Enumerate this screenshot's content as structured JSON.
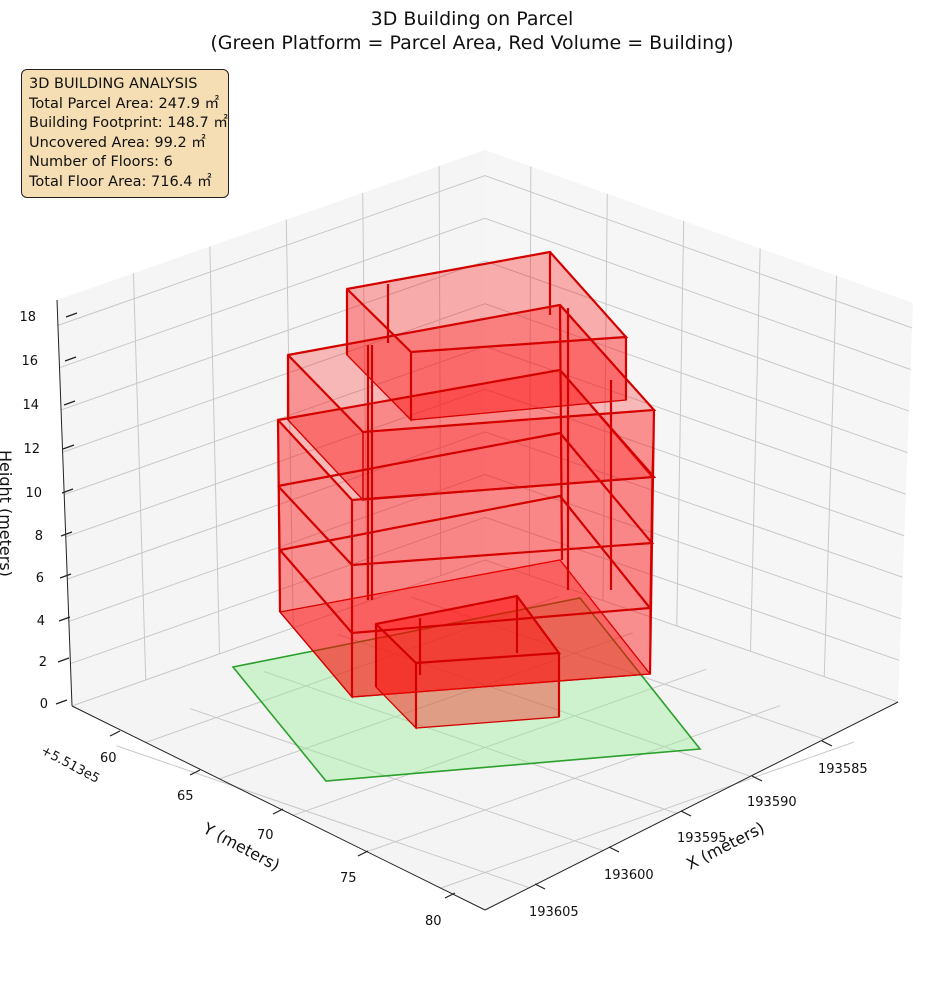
{
  "chart_data": {
    "type": "3d-polygons",
    "title_line1": "3D Building on Parcel",
    "title_line2": "(Green Platform = Parcel Area, Red Volume = Building)",
    "xlabel": "X (meters)",
    "ylabel": "Y (meters)",
    "zlabel": "Height (meters)",
    "y_offset_text": "+5.513e5",
    "x_ticks": [
      "193585",
      "193590",
      "193595",
      "193600",
      "193605"
    ],
    "y_ticks": [
      "60",
      "65",
      "70",
      "75",
      "80"
    ],
    "z_ticks": [
      "0",
      "2",
      "4",
      "6",
      "8",
      "10",
      "12",
      "14",
      "16",
      "18"
    ],
    "colors": {
      "parcel_fill": "#90ee90",
      "parcel_edge": "#2ca02c",
      "building_fill": "#ff0000",
      "building_edge": "#d40000",
      "info_box": "#f5deb3"
    },
    "info_box": {
      "line1": "3D BUILDING ANALYSIS",
      "line2": "Total Parcel Area: 247.9 ㎡",
      "line3": "Building Footprint: 148.7 ㎡",
      "line4": "Uncovered Area: 99.2 ㎡",
      "line5": "Number of Floors: 6",
      "line6": "Total Floor Area: 716.4 ㎡"
    }
  }
}
